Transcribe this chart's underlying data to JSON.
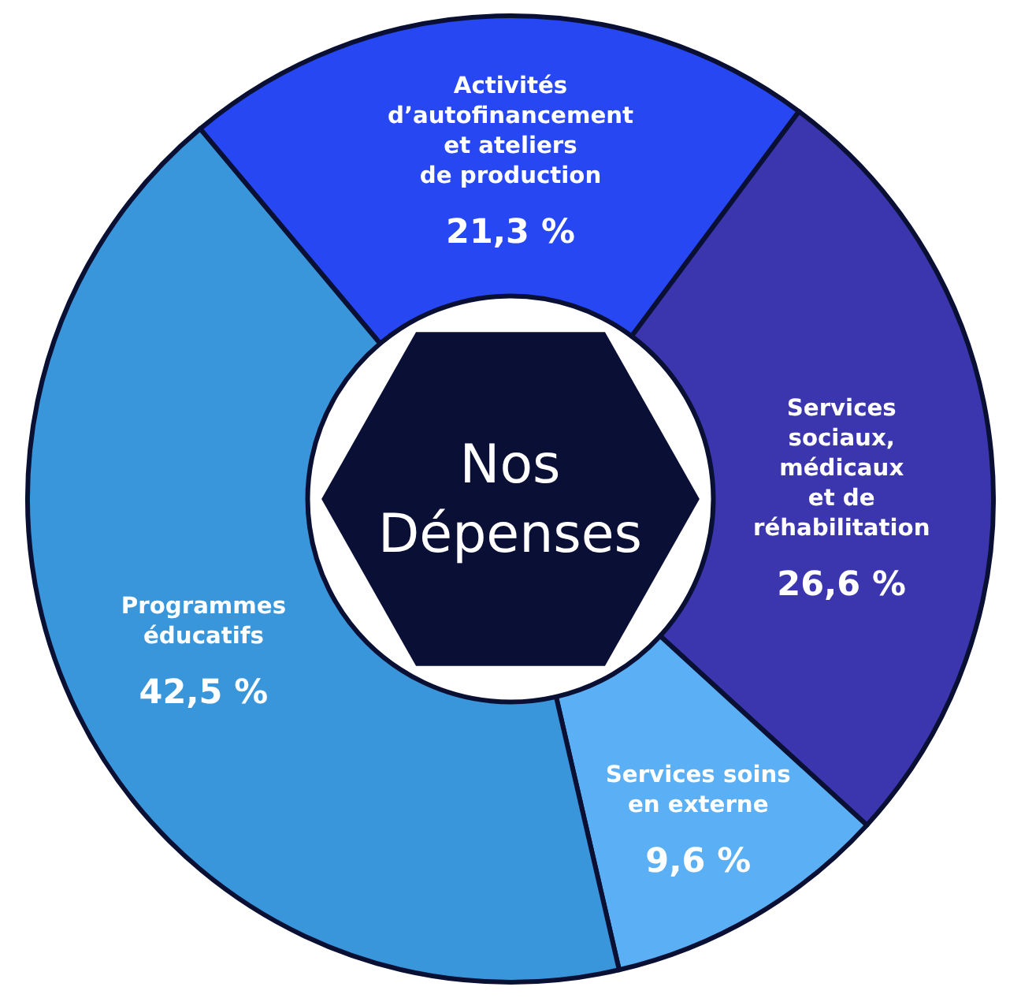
{
  "chart_data": {
    "type": "donut",
    "title": "Nos\nDépenses",
    "categories": [
      "Activités\nd’autofinancement\net ateliers\nde production",
      "Services\nsociaux,\nmédicaux\net de\nréhabilitation",
      "Services soins\nen externe",
      "Programmes\néducatifs"
    ],
    "values": [
      21.3,
      26.6,
      9.6,
      42.5
    ],
    "value_labels": [
      "21,3 %",
      "26,6 %",
      "9,6 %",
      "42,5 %"
    ],
    "colors": [
      "#2747f2",
      "#3b36ae",
      "#5bb0f5",
      "#3a96da"
    ],
    "legend": false
  }
}
